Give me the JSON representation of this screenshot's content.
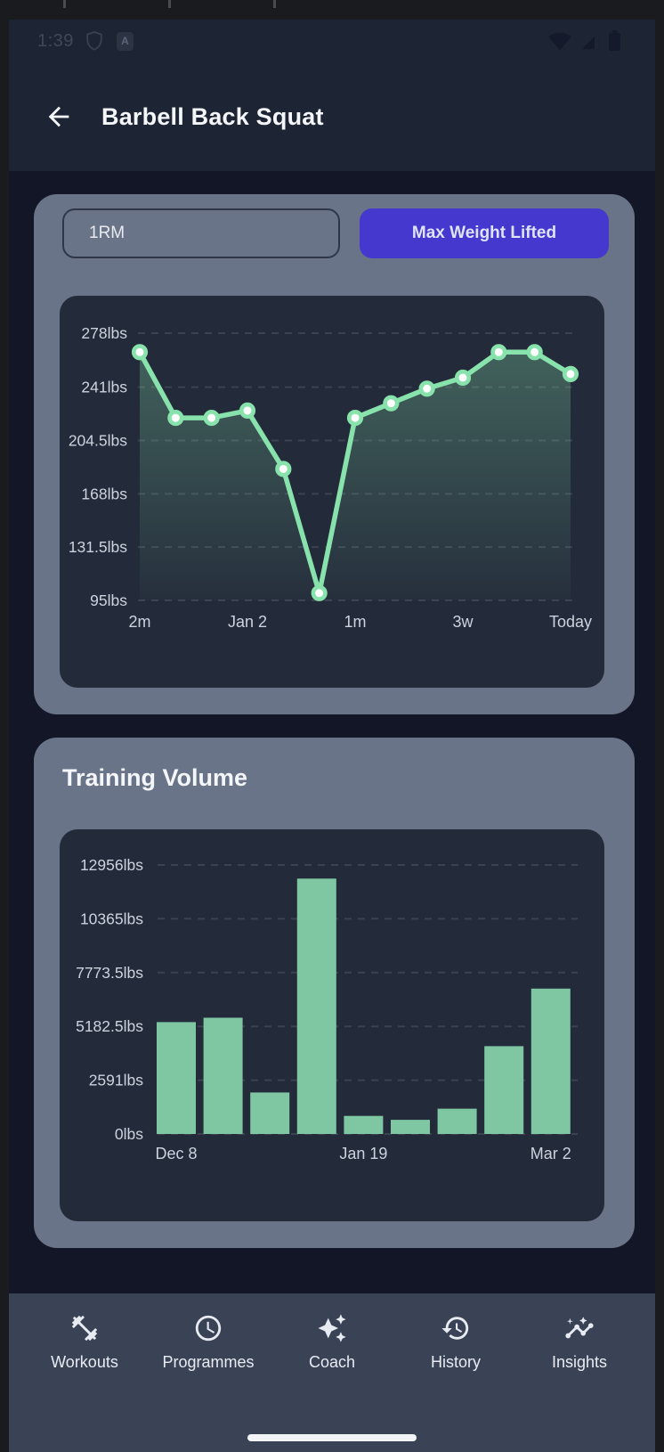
{
  "status_bar": {
    "time": "1:39"
  },
  "header": {
    "title": "Barbell Back Squat"
  },
  "toggle": {
    "options": [
      {
        "label": "1RM",
        "selected": false
      },
      {
        "label": "Max Weight Lifted",
        "selected": true
      }
    ]
  },
  "volume_section": {
    "title": "Training Volume"
  },
  "chart_data": [
    {
      "type": "line",
      "title": "Max Weight Lifted",
      "unit": "lbs",
      "values": [
        265,
        220,
        220,
        225,
        185,
        100,
        220,
        230,
        240,
        247.5,
        265,
        265,
        250
      ],
      "x_tick_labels": [
        "2m",
        "Jan 2",
        "1m",
        "3w",
        "Today"
      ],
      "x_tick_point_indices": [
        0,
        3,
        6,
        9,
        12
      ],
      "y_ticks": [
        278,
        241,
        204.5,
        168,
        131.5,
        95
      ],
      "y_tick_labels": [
        "278lbs",
        "241lbs",
        "204.5lbs",
        "168lbs",
        "131.5lbs",
        "95lbs"
      ],
      "ylim": [
        95,
        278
      ],
      "grid": "horizontal-dashed",
      "area_fill": "green-gradient-fade",
      "legend": "none"
    },
    {
      "type": "bar",
      "title": "Training Volume",
      "unit": "lbs",
      "values": [
        5390,
        5600,
        2000,
        12300,
        870,
        680,
        1220,
        4230,
        7000
      ],
      "x_tick_labels": [
        "Dec 8",
        "Jan 19",
        "Mar 2"
      ],
      "x_tick_bar_indices": [
        0,
        4,
        8
      ],
      "y_ticks": [
        0,
        2591,
        5182.5,
        7773.5,
        10365,
        12956
      ],
      "y_tick_labels": [
        "0lbs",
        "2591lbs",
        "5182.5lbs",
        "7773.5lbs",
        "10365lbs",
        "12956lbs"
      ],
      "ylim": [
        0,
        12956
      ],
      "grid": "horizontal-dashed",
      "legend": "none"
    }
  ],
  "bottom_nav": {
    "items": [
      {
        "label": "Workouts",
        "icon": "dumbbell-icon"
      },
      {
        "label": "Programmes",
        "icon": "clock-icon"
      },
      {
        "label": "Coach",
        "icon": "sparkles-icon"
      },
      {
        "label": "History",
        "icon": "history-icon"
      },
      {
        "label": "Insights",
        "icon": "insights-icon"
      }
    ]
  },
  "colors": {
    "accent_purple": "#4538ce",
    "line_green": "#88e2ac",
    "bar_green": "#7ec7a2",
    "card_slate": "#6a7488",
    "panel_dark": "#232a39",
    "gridline": "#3b4252",
    "axis_text": "#cdd3de",
    "nav_bg": "#3a4356"
  }
}
